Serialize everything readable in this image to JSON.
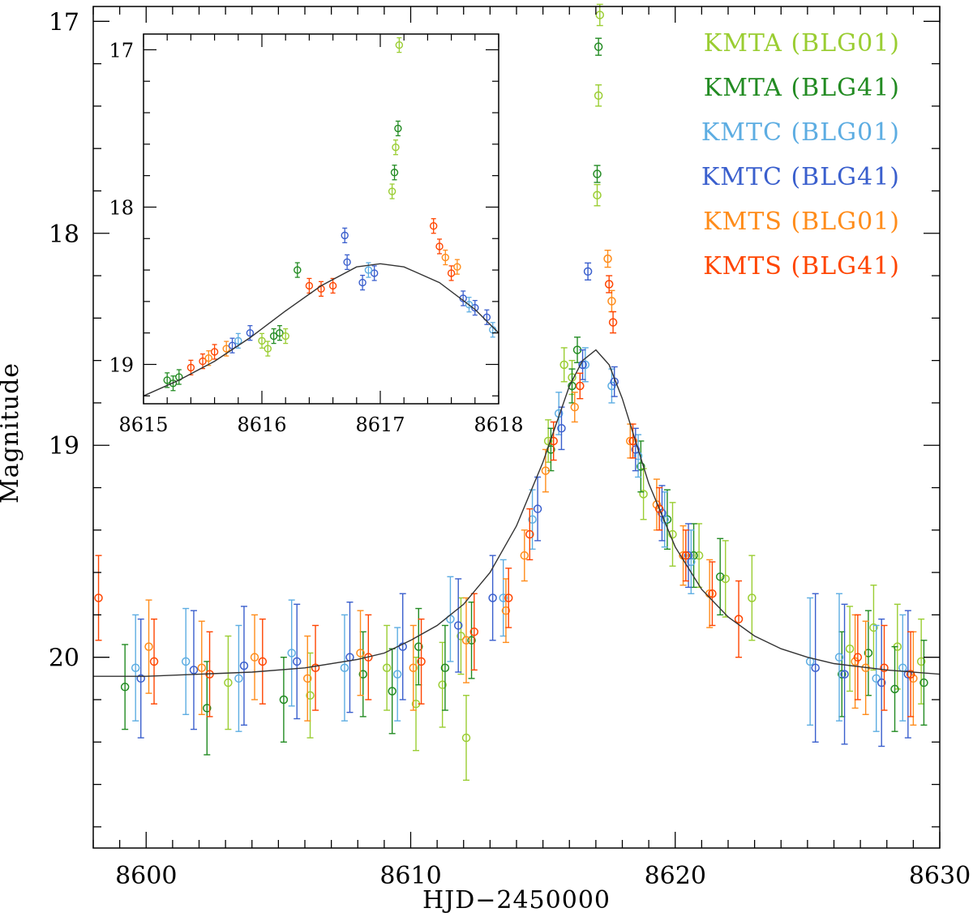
{
  "chart_data": {
    "type": "scatter",
    "xlabel": "HJD−2450000",
    "ylabel": "Magnitude",
    "xlim": [
      8598,
      8630
    ],
    "ylim": [
      20.9,
      16.93
    ],
    "xticks": [
      8600,
      8610,
      8620,
      8630
    ],
    "yticks": [
      17,
      18,
      19,
      20
    ],
    "model": {
      "name": "model-curve",
      "color": "#333333",
      "x": [
        8598,
        8600,
        8602,
        8604,
        8606,
        8608,
        8609,
        8610,
        8611,
        8612,
        8613,
        8614,
        8615,
        8615.5,
        8616,
        8616.5,
        8617,
        8617.5,
        8618,
        8618.5,
        8619,
        8620,
        8621,
        8622,
        8623,
        8624,
        8625,
        8626,
        8628,
        8630
      ],
      "y": [
        20.09,
        20.09,
        20.08,
        20.07,
        20.05,
        20.01,
        19.98,
        19.92,
        19.85,
        19.75,
        19.6,
        19.38,
        19.08,
        18.9,
        18.72,
        18.6,
        18.55,
        18.62,
        18.78,
        18.98,
        19.18,
        19.48,
        19.68,
        19.81,
        19.9,
        19.96,
        20.0,
        20.03,
        20.06,
        20.08
      ]
    },
    "series": [
      {
        "name": "KMTA (BLG01)",
        "color": "#9ACD32",
        "x": [
          8603.1,
          8606.2,
          8609.1,
          8610.2,
          8611.2,
          8611.9,
          8612.1,
          8615.2,
          8615.8,
          8616.1,
          8617.05,
          8617.1,
          8617.15,
          8618.8,
          8619.9,
          8620.9,
          8621.9,
          8622.9,
          8626.6,
          8627.5,
          8628.4,
          8629.3
        ],
        "y": [
          20.12,
          20.18,
          20.05,
          20.22,
          20.13,
          19.9,
          20.38,
          18.98,
          18.62,
          18.68,
          17.82,
          17.35,
          16.97,
          19.23,
          19.42,
          19.52,
          19.63,
          19.72,
          19.96,
          19.86,
          19.95,
          20.02
        ],
        "err": [
          0.22,
          0.2,
          0.2,
          0.22,
          0.2,
          0.18,
          0.2,
          0.1,
          0.08,
          0.08,
          0.05,
          0.05,
          0.05,
          0.12,
          0.15,
          0.15,
          0.18,
          0.2,
          0.2,
          0.2,
          0.2,
          0.2
        ]
      },
      {
        "name": "KMTA (BLG41)",
        "color": "#228B22",
        "x": [
          8599.2,
          8602.3,
          8605.2,
          8608.2,
          8609.3,
          8610.3,
          8611.3,
          8612.3,
          8615.3,
          8616.1,
          8616.3,
          8617.05,
          8617.1,
          8618.7,
          8619.7,
          8620.7,
          8621.7,
          8626.3,
          8627.3,
          8628.3,
          8629.4
        ],
        "y": [
          20.14,
          20.24,
          20.2,
          20.08,
          20.16,
          19.95,
          20.05,
          19.92,
          19.02,
          18.72,
          18.55,
          17.72,
          17.12,
          19.1,
          19.35,
          19.52,
          19.62,
          20.08,
          19.98,
          20.15,
          20.12
        ],
        "err": [
          0.2,
          0.22,
          0.2,
          0.2,
          0.2,
          0.18,
          0.2,
          0.18,
          0.1,
          0.08,
          0.06,
          0.04,
          0.04,
          0.12,
          0.14,
          0.15,
          0.18,
          0.2,
          0.2,
          0.2,
          0.2
        ]
      },
      {
        "name": "KMTC (BLG01)",
        "color": "#5DADE2",
        "x": [
          8599.6,
          8601.5,
          8603.5,
          8605.5,
          8607.5,
          8609.5,
          8611.5,
          8613.5,
          8614.6,
          8615.6,
          8616.6,
          8617.6,
          8618.6,
          8619.6,
          8620.6,
          8625.1,
          8626.2,
          8627.6,
          8628.6
        ],
        "y": [
          20.05,
          20.02,
          20.1,
          19.98,
          20.05,
          20.08,
          19.82,
          19.72,
          19.35,
          18.85,
          18.62,
          18.72,
          19.05,
          19.35,
          19.55,
          20.02,
          20.0,
          20.1,
          20.05
        ],
        "err": [
          0.25,
          0.25,
          0.25,
          0.25,
          0.25,
          0.22,
          0.2,
          0.18,
          0.14,
          0.1,
          0.08,
          0.08,
          0.1,
          0.13,
          0.15,
          0.3,
          0.3,
          0.25,
          0.25
        ]
      },
      {
        "name": "KMTC (BLG41)",
        "color": "#3A5FCD",
        "x": [
          8599.8,
          8601.8,
          8603.7,
          8605.7,
          8607.7,
          8609.7,
          8611.8,
          8613.1,
          8614.8,
          8615.7,
          8616.5,
          8616.7,
          8617.7,
          8618.5,
          8619.5,
          8620.5,
          8625.3,
          8626.4,
          8627.8,
          8628.8
        ],
        "y": [
          20.1,
          20.06,
          20.04,
          20.02,
          20.0,
          19.95,
          19.85,
          19.72,
          19.3,
          18.92,
          18.62,
          18.18,
          18.7,
          19.02,
          19.32,
          19.52,
          20.05,
          20.08,
          20.12,
          20.08
        ],
        "err": [
          0.28,
          0.28,
          0.28,
          0.27,
          0.26,
          0.25,
          0.22,
          0.2,
          0.15,
          0.1,
          0.07,
          0.04,
          0.07,
          0.1,
          0.13,
          0.15,
          0.35,
          0.33,
          0.3,
          0.3
        ]
      },
      {
        "name": "KMTS (BLG01)",
        "color": "#FF8C1A",
        "x": [
          8600.1,
          8602.1,
          8604.1,
          8606.1,
          8608.1,
          8610.1,
          8612.1,
          8613.6,
          8614.3,
          8615.1,
          8616.2,
          8617.45,
          8617.6,
          8618.3,
          8619.3,
          8620.3,
          8621.3,
          8626.8,
          8627.2,
          8629.0
        ],
        "y": [
          19.95,
          20.05,
          20.0,
          20.1,
          19.98,
          20.05,
          19.92,
          19.78,
          19.52,
          19.12,
          18.82,
          18.12,
          18.32,
          18.98,
          19.28,
          19.52,
          19.7,
          20.02,
          20.05,
          20.1
        ],
        "err": [
          0.22,
          0.22,
          0.2,
          0.2,
          0.2,
          0.2,
          0.2,
          0.15,
          0.12,
          0.1,
          0.07,
          0.04,
          0.05,
          0.08,
          0.12,
          0.14,
          0.16,
          0.22,
          0.22,
          0.22
        ]
      },
      {
        "name": "KMTS (BLG41)",
        "color": "#FF4500",
        "x": [
          8598.2,
          8600.3,
          8602.4,
          8604.4,
          8606.4,
          8608.4,
          8610.4,
          8612.4,
          8613.7,
          8614.5,
          8615.4,
          8616.4,
          8617.5,
          8617.65,
          8618.4,
          8619.4,
          8620.4,
          8621.4,
          8622.4,
          8626.9,
          8627.9,
          8628.9
        ],
        "y": [
          19.72,
          20.02,
          20.08,
          20.02,
          20.05,
          20.0,
          20.02,
          19.88,
          19.72,
          19.42,
          18.98,
          18.72,
          18.24,
          18.42,
          18.98,
          19.3,
          19.52,
          19.7,
          19.82,
          20.0,
          20.05,
          20.08
        ],
        "err": [
          0.2,
          0.2,
          0.2,
          0.2,
          0.2,
          0.2,
          0.2,
          0.18,
          0.14,
          0.12,
          0.09,
          0.06,
          0.04,
          0.05,
          0.08,
          0.1,
          0.12,
          0.15,
          0.18,
          0.2,
          0.2,
          0.2
        ]
      }
    ],
    "inset": {
      "xlim": [
        8615,
        8618
      ],
      "ylim": [
        19.25,
        16.9
      ],
      "xticks": [
        8615,
        8616,
        8617,
        8618
      ],
      "yticks": [
        17,
        18,
        19
      ],
      "model": {
        "x": [
          8615.0,
          8615.3,
          8615.6,
          8615.9,
          8616.2,
          8616.5,
          8616.8,
          8617.0,
          8617.2,
          8617.5,
          8617.8,
          8618.0
        ],
        "y": [
          19.2,
          19.1,
          18.98,
          18.83,
          18.66,
          18.5,
          18.38,
          18.36,
          18.38,
          18.48,
          18.65,
          18.8
        ]
      },
      "points": [
        {
          "series": 1,
          "x": [
            8615.2,
            8615.25,
            8615.3,
            8616.1,
            8616.15,
            8616.3
          ],
          "y": [
            19.1,
            19.12,
            19.08,
            18.82,
            18.8,
            18.4
          ]
        },
        {
          "series": 0,
          "x": [
            8616.0,
            8616.05,
            8616.2,
            8617.1,
            8617.13,
            8617.16
          ],
          "y": [
            18.85,
            18.9,
            18.82,
            17.9,
            17.62,
            16.97
          ]
        },
        {
          "series": 1,
          "x": [
            8617.12,
            8617.15
          ],
          "y": [
            17.78,
            17.5
          ]
        },
        {
          "series": 5,
          "x": [
            8615.4,
            8615.5,
            8615.6,
            8616.4,
            8616.5,
            8616.6,
            8617.45,
            8617.5,
            8617.6
          ],
          "y": [
            19.02,
            18.98,
            18.92,
            18.5,
            18.52,
            18.5,
            18.12,
            18.25,
            18.42
          ]
        },
        {
          "series": 4,
          "x": [
            8615.55,
            8615.7,
            8617.55,
            8617.65
          ],
          "y": [
            18.96,
            18.9,
            18.32,
            18.38
          ]
        },
        {
          "series": 3,
          "x": [
            8615.75,
            8615.9,
            8616.7,
            8616.72,
            8616.85,
            8616.95,
            8617.7,
            8617.8,
            8617.9
          ],
          "y": [
            18.88,
            18.8,
            18.18,
            18.35,
            18.48,
            18.42,
            18.58,
            18.64,
            18.7
          ]
        },
        {
          "series": 2,
          "x": [
            8615.8,
            8616.9,
            8617.75,
            8617.95
          ],
          "y": [
            18.85,
            18.4,
            18.62,
            18.78
          ]
        }
      ]
    }
  }
}
